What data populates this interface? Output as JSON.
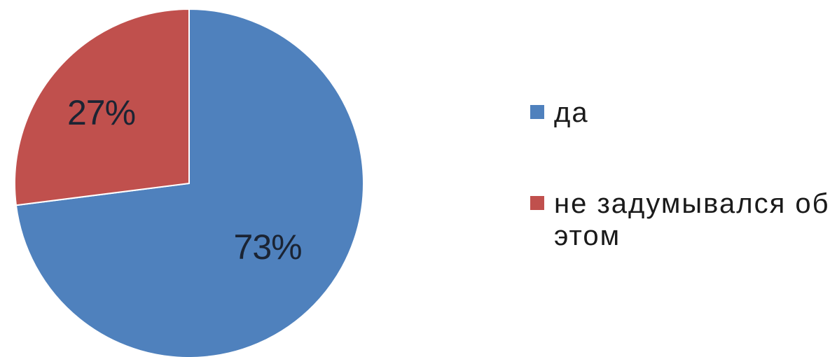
{
  "chart_data": {
    "type": "pie",
    "title": "",
    "categories": [
      "да",
      "не задумывался об этом"
    ],
    "values": [
      73,
      27
    ],
    "labels": [
      "73%",
      "27%"
    ],
    "colors": [
      "#4f81bd",
      "#c0504d"
    ],
    "start_angle_deg": 0,
    "direction": "clockwise",
    "legend": {
      "position": "right",
      "items": [
        {
          "label": "да",
          "color": "#4f81bd"
        },
        {
          "label": "не задумывался об этом",
          "color": "#c0504d"
        }
      ]
    }
  }
}
